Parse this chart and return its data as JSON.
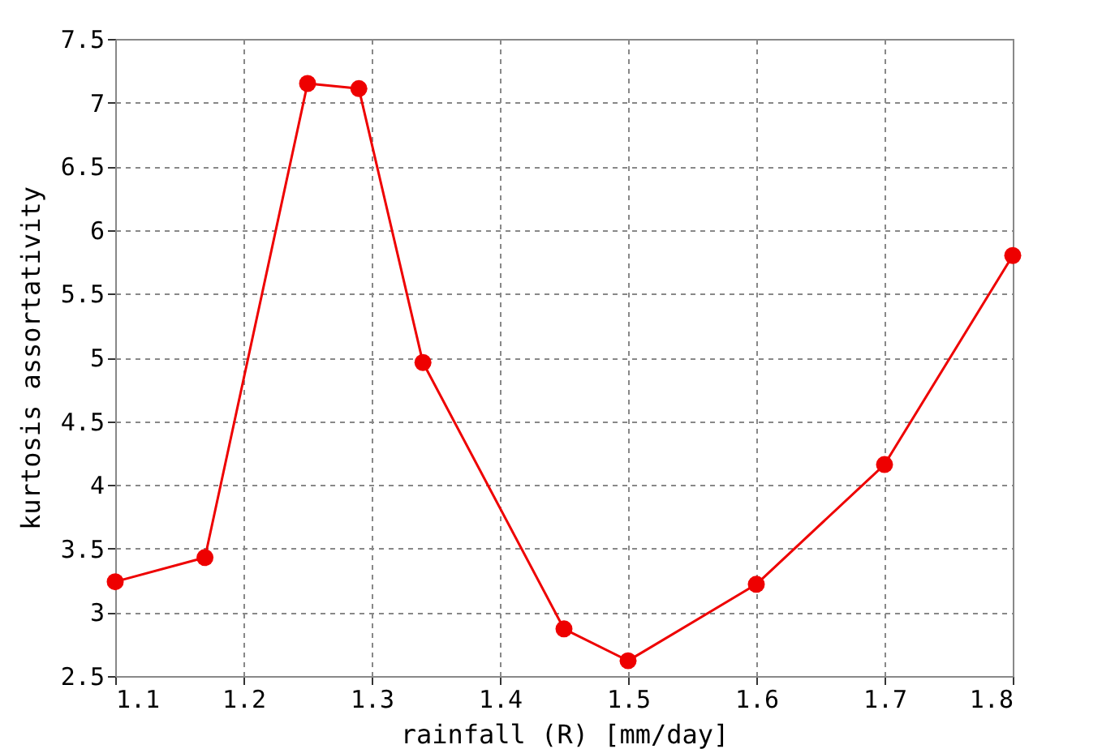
{
  "chart_data": {
    "type": "line",
    "xlabel": "rainfall (R) [mm/day]",
    "ylabel": "kurtosis assortativity",
    "x": [
      1.1,
      1.17,
      1.25,
      1.29,
      1.34,
      1.45,
      1.5,
      1.6,
      1.7,
      1.8
    ],
    "series": [
      {
        "color": "#ee0000",
        "values": [
          3.24,
          3.43,
          7.15,
          7.11,
          4.96,
          2.87,
          2.62,
          3.22,
          4.16,
          5.8
        ]
      }
    ],
    "xlim": [
      1.1,
      1.8
    ],
    "xticks": [
      1.1,
      1.2,
      1.3,
      1.4,
      1.5,
      1.6,
      1.7,
      1.8
    ],
    "ylim": [
      2.5,
      7.5
    ],
    "yticks": [
      2.5,
      3,
      3.5,
      4,
      4.5,
      5,
      5.5,
      6,
      6.5,
      7,
      7.5
    ],
    "grid": true,
    "marker": "circle",
    "line_style": "solid"
  }
}
